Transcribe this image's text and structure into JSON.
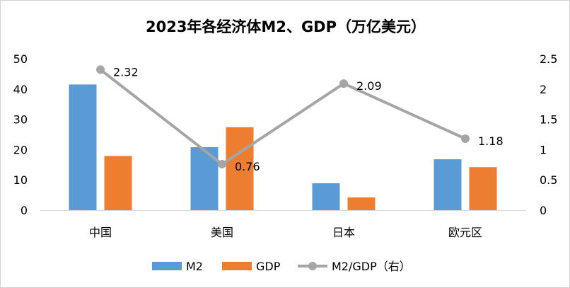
{
  "chart_data": {
    "type": "bar",
    "title": "2023年各经济体M2、GDP（万亿美元）",
    "categories": [
      "中国",
      "美国",
      "日本",
      "欧元区"
    ],
    "series": [
      {
        "name": "M2",
        "type": "bar",
        "axis": "left",
        "color": "#5B9BD5",
        "values": [
          41.5,
          20.8,
          8.9,
          16.8
        ]
      },
      {
        "name": "GDP",
        "type": "bar",
        "axis": "left",
        "color": "#ED7D31",
        "values": [
          17.9,
          27.4,
          4.2,
          14.2
        ]
      },
      {
        "name": "M2/GDP（右）",
        "type": "line",
        "axis": "right",
        "color": "#A5A5A5",
        "values": [
          2.32,
          0.76,
          2.09,
          1.18
        ],
        "labels": [
          "2.32",
          "0.76",
          "2.09",
          "1.18"
        ]
      }
    ],
    "y_left": {
      "min": 0,
      "max": 50,
      "ticks": [
        "0",
        "10",
        "20",
        "30",
        "40",
        "50"
      ]
    },
    "y_right": {
      "min": 0,
      "max": 2.5,
      "ticks": [
        "0",
        "0.5",
        "1",
        "1.5",
        "2",
        "2.5"
      ]
    },
    "grid": false,
    "legend_position": "bottom"
  }
}
